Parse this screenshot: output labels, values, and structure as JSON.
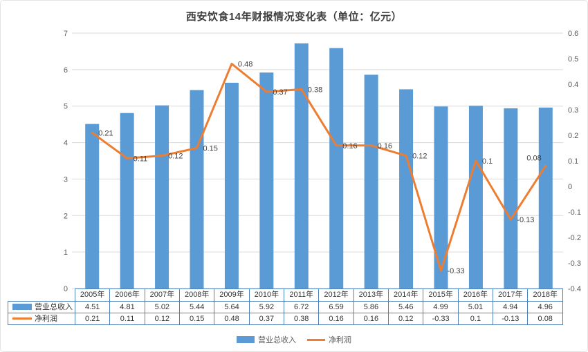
{
  "title": "西安饮食14年财报情况变化表（单位：亿元）",
  "colors": {
    "bar": "#5B9BD5",
    "line": "#ED7D31",
    "grid": "#DBDBDB",
    "axis_text": "#595959",
    "label_text": "#404040",
    "table_border": "#4f81bd",
    "table_text": "#333333"
  },
  "chart_data": {
    "type": "bar",
    "subtype": "combo-bar-line",
    "title": "西安饮食14年财报情况变化表（单位：亿元）",
    "categories": [
      "2005年",
      "2006年",
      "2007年",
      "2008年",
      "2009年",
      "2010年",
      "2011年",
      "2012年",
      "2013年",
      "2014年",
      "2015年",
      "2016年",
      "2017年",
      "2018年"
    ],
    "series": [
      {
        "name": "营业总收入",
        "type": "bar",
        "axis": "left",
        "color": "#5B9BD5",
        "values": [
          4.51,
          4.81,
          5.02,
          5.44,
          5.64,
          5.92,
          6.72,
          6.59,
          5.86,
          5.46,
          4.99,
          5.01,
          4.94,
          4.96
        ]
      },
      {
        "name": "净利润",
        "type": "line",
        "axis": "right",
        "color": "#ED7D31",
        "values": [
          0.21,
          0.11,
          0.12,
          0.15,
          0.48,
          0.37,
          0.38,
          0.16,
          0.16,
          0.12,
          -0.33,
          0.1,
          -0.13,
          0.08
        ],
        "labels": [
          "0.21",
          "0.11",
          "0.12",
          "0.15",
          "0.48",
          "0.37",
          "0.38",
          "0.16",
          "0.16",
          "0.12",
          "-0.33",
          "0.1",
          "-0.13",
          "0.08"
        ]
      }
    ],
    "left_axis": {
      "min": 0,
      "max": 7,
      "step": 1,
      "ticks": [
        "0",
        "1",
        "2",
        "3",
        "4",
        "5",
        "6",
        "7"
      ]
    },
    "right_axis": {
      "min": -0.4,
      "max": 0.6,
      "step": 0.1,
      "ticks": [
        "0.6",
        "0.5",
        "0.4",
        "0.3",
        "0.2",
        "0.1",
        "0",
        "-0.1",
        "-0.2",
        "-0.3",
        "-0.4"
      ]
    },
    "grid": true,
    "legend_position": "bottom",
    "xlabel": "",
    "ylabel": ""
  },
  "table": {
    "rows": [
      {
        "label": "营业总收入",
        "swatch": "bar",
        "values": [
          "4.51",
          "4.81",
          "5.02",
          "5.44",
          "5.64",
          "5.92",
          "6.72",
          "6.59",
          "5.86",
          "5.46",
          "4.99",
          "5.01",
          "4.94",
          "4.96"
        ]
      },
      {
        "label": "净利润",
        "swatch": "line",
        "values": [
          "0.21",
          "0.11",
          "0.12",
          "0.15",
          "0.48",
          "0.37",
          "0.38",
          "0.16",
          "0.16",
          "0.12",
          "-0.33",
          "0.1",
          "-0.13",
          "0.08"
        ]
      }
    ]
  },
  "legend": {
    "items": [
      {
        "label": "营业总收入",
        "swatch": "bar"
      },
      {
        "label": "净利润",
        "swatch": "line"
      }
    ]
  }
}
